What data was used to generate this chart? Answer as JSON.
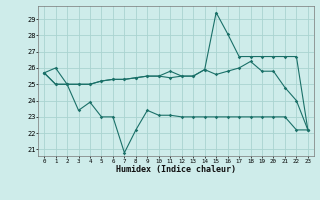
{
  "xlabel": "Humidex (Indice chaleur)",
  "background_color": "#ceecea",
  "grid_color": "#aad4d0",
  "line_color": "#1a7068",
  "x": [
    0,
    1,
    2,
    3,
    4,
    5,
    6,
    7,
    8,
    9,
    10,
    11,
    12,
    13,
    14,
    15,
    16,
    17,
    18,
    19,
    20,
    21,
    22,
    23
  ],
  "line1": [
    25.7,
    26.0,
    25.0,
    23.4,
    23.9,
    23.0,
    23.0,
    20.8,
    22.2,
    23.4,
    23.1,
    23.1,
    23.0,
    23.0,
    23.0,
    23.0,
    23.0,
    23.0,
    23.0,
    23.0,
    23.0,
    23.0,
    22.2,
    22.2
  ],
  "line2": [
    25.7,
    25.0,
    25.0,
    25.0,
    25.0,
    25.2,
    25.3,
    25.3,
    25.4,
    25.5,
    25.5,
    25.4,
    25.5,
    25.5,
    25.9,
    25.6,
    25.8,
    26.0,
    26.4,
    25.8,
    25.8,
    24.8,
    24.0,
    22.2
  ],
  "line3": [
    25.7,
    25.0,
    25.0,
    25.0,
    25.0,
    25.2,
    25.3,
    25.3,
    25.4,
    25.5,
    25.5,
    25.8,
    25.5,
    25.5,
    25.9,
    29.4,
    28.1,
    26.7,
    26.7,
    26.7,
    26.7,
    26.7,
    26.7,
    22.2
  ],
  "ylim_min": 20.6,
  "ylim_max": 29.8,
  "yticks": [
    21,
    22,
    23,
    24,
    25,
    26,
    27,
    28,
    29
  ],
  "xlim_min": -0.5,
  "xlim_max": 23.5,
  "figwidth": 3.2,
  "figheight": 2.0,
  "dpi": 100
}
